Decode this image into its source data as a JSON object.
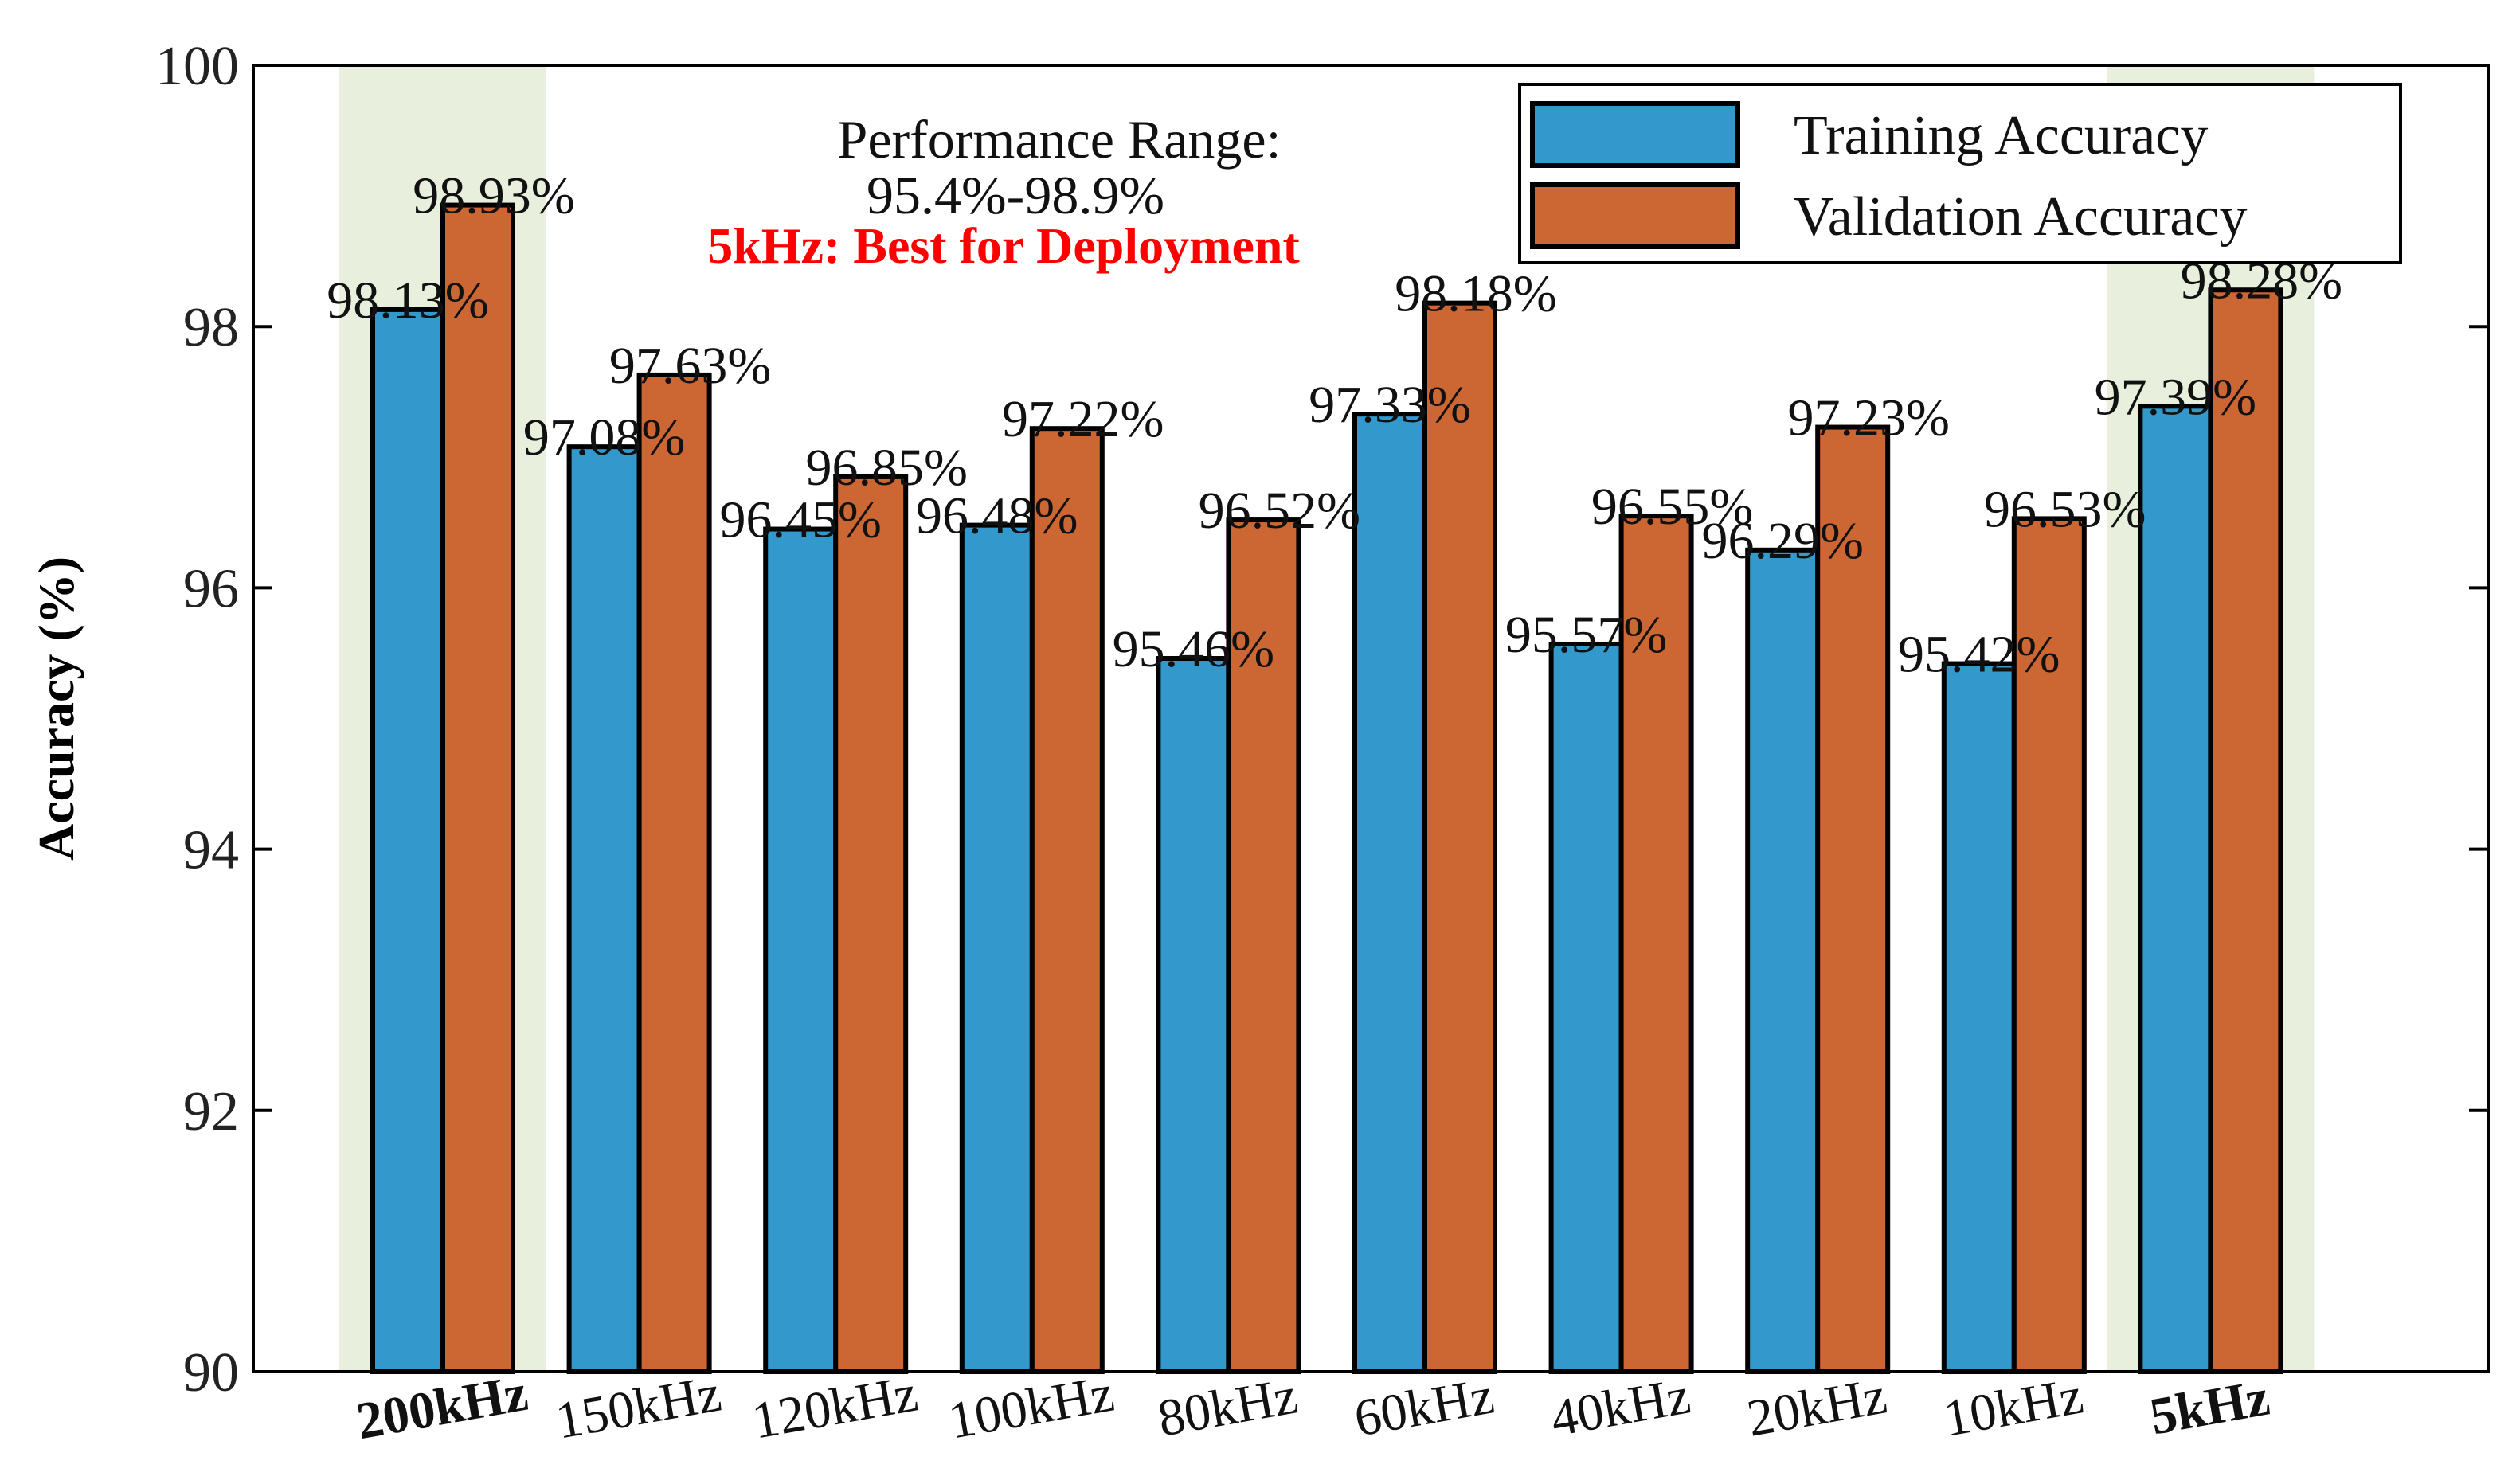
{
  "chart_data": {
    "type": "bar",
    "categories": [
      "200kHz",
      "150kHz",
      "120kHz",
      "100kHz",
      "80kHz",
      "60kHz",
      "40kHz",
      "20kHz",
      "10kHz",
      "5kHz"
    ],
    "bold_categories": [
      "200kHz",
      "5kHz"
    ],
    "highlighted_categories": [
      "200kHz",
      "5kHz"
    ],
    "series": [
      {
        "name": "Training Accuracy",
        "color": "#3399cc",
        "values": [
          98.13,
          97.08,
          96.45,
          96.48,
          95.46,
          97.33,
          95.57,
          96.29,
          95.42,
          97.39
        ],
        "labels": [
          "98.13%",
          "97.08%",
          "96.45%",
          "96.48%",
          "95.46%",
          "97.33%",
          "95.57%",
          "96.29%",
          "95.42%",
          "97.39%"
        ]
      },
      {
        "name": "Validation Accuracy",
        "color": "#cc6633",
        "values": [
          98.93,
          97.63,
          96.85,
          97.22,
          96.52,
          98.18,
          96.55,
          97.23,
          96.53,
          98.28
        ],
        "labels": [
          "98.93%",
          "97.63%",
          "96.85%",
          "97.22%",
          "96.52%",
          "98.18%",
          "96.55%",
          "97.23%",
          "96.53%",
          "98.28%"
        ]
      }
    ],
    "ylabel": "Accuracy (%)",
    "xlabel": "",
    "ylim": [
      90,
      100
    ],
    "yticks": [
      "90",
      "92",
      "94",
      "96",
      "98",
      "100"
    ],
    "grid": false,
    "legend_position": "top-right",
    "highlight_color": "#e8efdc",
    "annotations": {
      "range_title": "Performance Range:",
      "range_value": "95.4%-98.9%",
      "note": "5kHz: Best for Deployment",
      "note_color": "#ff0000"
    }
  }
}
